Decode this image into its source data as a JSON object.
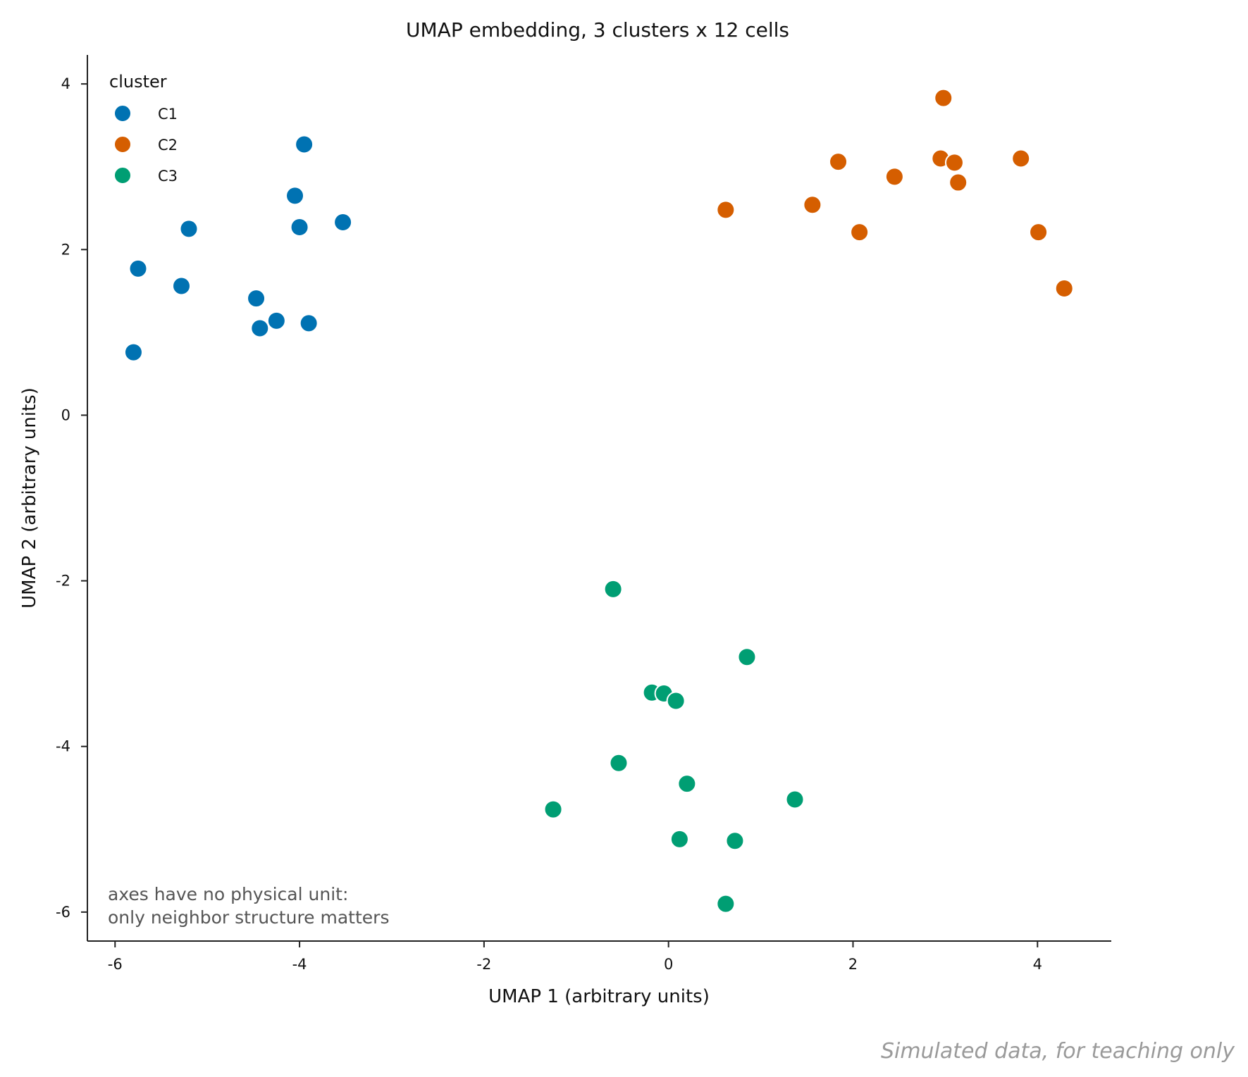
{
  "chart_data": {
    "type": "scatter",
    "title": "UMAP embedding, 3 clusters x 12 cells",
    "xlabel": "UMAP 1 (arbitrary units)",
    "ylabel": "UMAP 2 (arbitrary units)",
    "xlim": [
      -6.3,
      4.8
    ],
    "ylim": [
      -6.35,
      4.35
    ],
    "xticks": [
      -6,
      -4,
      -2,
      0,
      2,
      4
    ],
    "yticks": [
      -6,
      -4,
      -2,
      0,
      2,
      4
    ],
    "grid": false,
    "legend": {
      "title": "cluster",
      "position": "top-left"
    },
    "series": [
      {
        "name": "C1",
        "color": "#0072b2",
        "points": [
          [
            -3.95,
            3.27
          ],
          [
            -4.05,
            2.65
          ],
          [
            -4.0,
            2.27
          ],
          [
            -3.53,
            2.33
          ],
          [
            -5.2,
            2.25
          ],
          [
            -5.75,
            1.77
          ],
          [
            -5.28,
            1.56
          ],
          [
            -4.47,
            1.41
          ],
          [
            -4.25,
            1.14
          ],
          [
            -4.43,
            1.05
          ],
          [
            -3.9,
            1.11
          ],
          [
            -5.8,
            0.76
          ]
        ]
      },
      {
        "name": "C2",
        "color": "#d55e00",
        "points": [
          [
            2.98,
            3.83
          ],
          [
            1.84,
            3.06
          ],
          [
            2.95,
            3.1
          ],
          [
            3.1,
            3.05
          ],
          [
            3.82,
            3.1
          ],
          [
            2.45,
            2.88
          ],
          [
            3.14,
            2.81
          ],
          [
            0.62,
            2.48
          ],
          [
            1.56,
            2.54
          ],
          [
            2.07,
            2.21
          ],
          [
            4.01,
            2.21
          ],
          [
            4.29,
            1.53
          ]
        ]
      },
      {
        "name": "C3",
        "color": "#009e73",
        "points": [
          [
            -0.6,
            -2.1
          ],
          [
            0.85,
            -2.92
          ],
          [
            -0.18,
            -3.35
          ],
          [
            -0.05,
            -3.36
          ],
          [
            0.08,
            -3.45
          ],
          [
            -0.54,
            -4.2
          ],
          [
            0.2,
            -4.45
          ],
          [
            1.37,
            -4.64
          ],
          [
            -1.25,
            -4.76
          ],
          [
            0.12,
            -5.12
          ],
          [
            0.72,
            -5.14
          ],
          [
            0.62,
            -5.9
          ]
        ]
      }
    ]
  },
  "annotation": {
    "line1": "axes have no physical unit:",
    "line2": "only neighbor structure matters"
  },
  "footer": "Simulated data, for teaching only"
}
